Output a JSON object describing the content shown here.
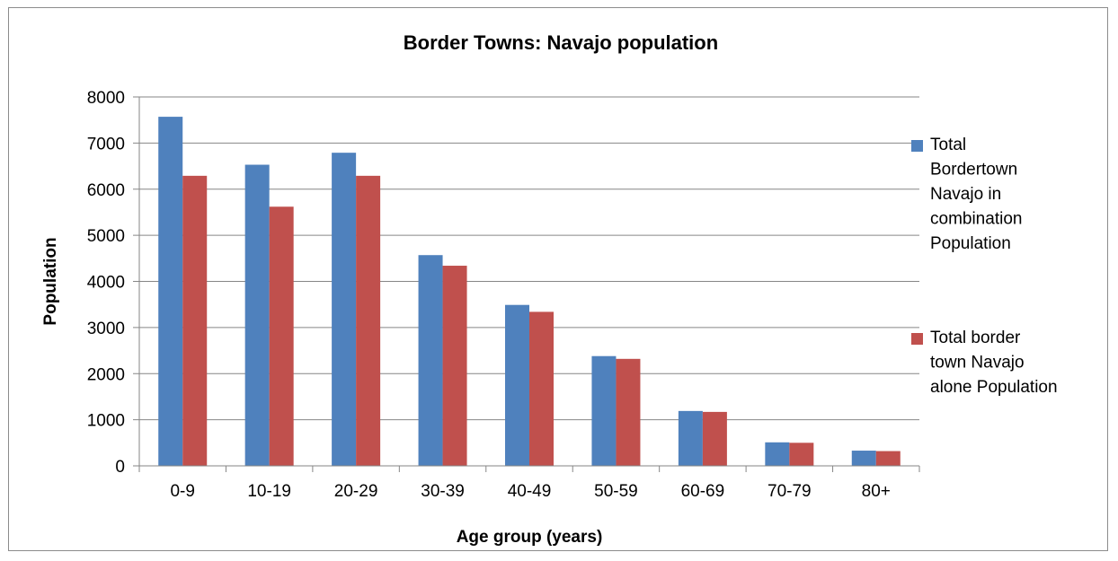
{
  "chart_data": {
    "type": "bar",
    "title": "Border Towns: Navajo population",
    "xlabel": "Age group (years)",
    "ylabel": "Population",
    "categories": [
      "0-9",
      "10-19",
      "20-29",
      "30-39",
      "40-49",
      "50-59",
      "60-69",
      "70-79",
      "80+"
    ],
    "series": [
      {
        "name": "Total Bordertown Navajo in combination Population",
        "legend_lines": [
          "Total",
          "Bordertown",
          "Navajo in",
          "combination",
          "Population"
        ],
        "color": "#4f81bd",
        "values": [
          7570,
          6530,
          6790,
          4570,
          3490,
          2380,
          1190,
          510,
          330
        ]
      },
      {
        "name": "Total border town Navajo alone Population",
        "legend_lines": [
          "Total border",
          "town Navajo",
          "alone Population"
        ],
        "color": "#c0504d",
        "values": [
          6290,
          5620,
          6290,
          4340,
          3340,
          2320,
          1170,
          500,
          320
        ]
      }
    ],
    "ylim": [
      0,
      8000
    ],
    "yticks": [
      0,
      1000,
      2000,
      3000,
      4000,
      5000,
      6000,
      7000,
      8000
    ],
    "grid": true,
    "legend_position": "right"
  }
}
